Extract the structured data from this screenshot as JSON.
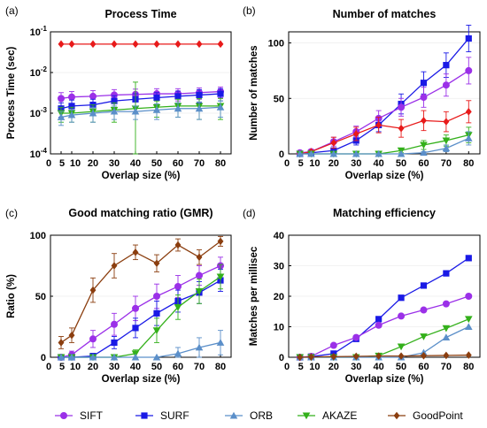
{
  "legend": [
    {
      "name": "SIFT",
      "color": "#9b30e8",
      "marker": "circle"
    },
    {
      "name": "SURF",
      "color": "#1a1ae6",
      "marker": "square"
    },
    {
      "name": "ORB",
      "color": "#5b8fc9",
      "marker": "triangle-up"
    },
    {
      "name": "AKAZE",
      "color": "#33b01a",
      "marker": "triangle-down"
    },
    {
      "name": "GoodPoint",
      "color": "#8b3e0f",
      "marker": "diamond"
    }
  ],
  "chart_data": [
    {
      "panel": "(a)",
      "type": "line",
      "title": "Process Time",
      "xlabel": "Overlap size (%)",
      "ylabel": "Process Time (sec)",
      "yscale": "log",
      "ylim": [
        0.0001,
        0.1
      ],
      "xlim": [
        0,
        85
      ],
      "xticks": [
        0,
        5,
        10,
        20,
        30,
        40,
        50,
        60,
        70,
        80
      ],
      "yticks": [
        {
          "value": 0.0001,
          "base": "10",
          "exp": "-4"
        },
        {
          "value": 0.001,
          "base": "10",
          "exp": "-3"
        },
        {
          "value": 0.01,
          "base": "10",
          "exp": "-2"
        },
        {
          "value": 0.1,
          "base": "10",
          "exp": "-1"
        }
      ],
      "x": [
        5,
        10,
        20,
        30,
        40,
        50,
        60,
        70,
        80
      ],
      "series": [
        {
          "key": "GoodPoint",
          "color": "#e81a1a",
          "marker": "diamond",
          "values": [
            0.05,
            0.05,
            0.05,
            0.05,
            0.05,
            0.05,
            0.05,
            0.05,
            0.05
          ],
          "err": [
            0,
            0,
            0,
            0,
            0,
            0,
            0,
            0,
            0
          ]
        },
        {
          "key": "SIFT",
          "color": "#9b30e8",
          "marker": "circle",
          "values": [
            0.0023,
            0.0025,
            0.0026,
            0.0028,
            0.0029,
            0.003,
            0.003,
            0.0032,
            0.0034
          ],
          "err": [
            0.0009,
            0.0009,
            0.001,
            0.001,
            0.001,
            0.001,
            0.001,
            0.001,
            0.001
          ]
        },
        {
          "key": "SURF",
          "color": "#1a1ae6",
          "marker": "square",
          "values": [
            0.0013,
            0.0015,
            0.0016,
            0.002,
            0.0022,
            0.0024,
            0.0026,
            0.0028,
            0.003
          ],
          "err": [
            0.0005,
            0.0006,
            0.0006,
            0.0007,
            0.0008,
            0.0008,
            0.0009,
            0.001,
            0.001
          ]
        },
        {
          "key": "AKAZE",
          "color": "#33b01a",
          "marker": "triangle-down",
          "values": [
            0.001,
            0.001,
            0.0011,
            0.0012,
            0.0013,
            0.0014,
            0.0015,
            0.0015,
            0.0015
          ],
          "err": [
            0.0004,
            0.0004,
            0.0005,
            0.0006,
            0.0045,
            0.0006,
            0.0007,
            0.0008,
            0.0008
          ]
        },
        {
          "key": "ORB",
          "color": "#5b8fc9",
          "marker": "triangle-up",
          "values": [
            0.0008,
            0.0009,
            0.001,
            0.0011,
            0.0011,
            0.0012,
            0.0013,
            0.0013,
            0.0014
          ],
          "err": [
            0.0003,
            0.0003,
            0.0004,
            0.0004,
            0.0004,
            0.0005,
            0.0005,
            0.0006,
            0.0006
          ]
        }
      ]
    },
    {
      "panel": "(b)",
      "type": "line",
      "title": "Number of matches",
      "xlabel": "Overlap size (%)",
      "ylabel": "Number of matches",
      "ylim": [
        0,
        110
      ],
      "xlim": [
        0,
        85
      ],
      "xticks": [
        0,
        5,
        10,
        20,
        30,
        40,
        50,
        60,
        70,
        80
      ],
      "yticks": [
        0,
        50,
        100
      ],
      "x": [
        5,
        10,
        20,
        30,
        40,
        50,
        60,
        70,
        80
      ],
      "series": [
        {
          "key": "SURF",
          "color": "#1a1ae6",
          "marker": "square",
          "values": [
            0,
            1,
            3,
            12,
            26,
            45,
            64,
            80,
            104
          ],
          "err": [
            1,
            1,
            2,
            4,
            6,
            9,
            10,
            11,
            12
          ]
        },
        {
          "key": "SIFT",
          "color": "#9b30e8",
          "marker": "circle",
          "values": [
            1,
            2,
            11,
            20,
            32,
            42,
            51,
            62,
            75
          ],
          "err": [
            1,
            2,
            4,
            5,
            7,
            8,
            9,
            10,
            12
          ]
        },
        {
          "key": "AKAZE_red",
          "color": "#e81a1a",
          "marker": "diamond",
          "values": [
            0,
            2,
            10,
            18,
            26,
            23,
            30,
            29,
            38
          ],
          "err": [
            1,
            1,
            5,
            6,
            7,
            8,
            9,
            9,
            10
          ]
        },
        {
          "key": "AKAZE",
          "color": "#33b01a",
          "marker": "triangle-down",
          "values": [
            0,
            0,
            0,
            0,
            0,
            3,
            8,
            12,
            17
          ],
          "err": [
            0,
            0,
            0,
            0,
            0,
            2,
            4,
            5,
            7
          ]
        },
        {
          "key": "ORB",
          "color": "#5b8fc9",
          "marker": "triangle-up",
          "values": [
            0,
            0,
            0,
            0,
            0,
            0,
            1,
            5,
            14
          ],
          "err": [
            0,
            0,
            0,
            0,
            0,
            0,
            1,
            3,
            6
          ]
        }
      ]
    },
    {
      "panel": "(c)",
      "type": "line",
      "title": "Good matching ratio  (GMR)",
      "xlabel": "Overlap size (%)",
      "ylabel": "Ratio (%)",
      "ylim": [
        0,
        100
      ],
      "xlim": [
        0,
        85
      ],
      "xticks": [
        0,
        5,
        10,
        20,
        30,
        40,
        50,
        60,
        70,
        80
      ],
      "yticks": [
        0,
        50,
        100
      ],
      "x": [
        5,
        10,
        20,
        30,
        40,
        50,
        60,
        70,
        80
      ],
      "series": [
        {
          "key": "GoodPoint",
          "color": "#8b3e0f",
          "marker": "diamond",
          "values": [
            12,
            18,
            55,
            75,
            86,
            77,
            92,
            82,
            95
          ],
          "err": [
            5,
            6,
            10,
            10,
            6,
            7,
            5,
            6,
            4
          ]
        },
        {
          "key": "SIFT",
          "color": "#9b30e8",
          "marker": "circle",
          "values": [
            0,
            2,
            15,
            27,
            40,
            50,
            58,
            67,
            75
          ],
          "err": [
            1,
            3,
            7,
            9,
            10,
            10,
            9,
            8,
            7
          ]
        },
        {
          "key": "SURF",
          "color": "#1a1ae6",
          "marker": "square",
          "values": [
            0,
            0,
            1,
            12,
            24,
            36,
            46,
            53,
            63
          ],
          "err": [
            0,
            0,
            1,
            5,
            8,
            10,
            9,
            9,
            9
          ]
        },
        {
          "key": "AKAZE",
          "color": "#33b01a",
          "marker": "triangle-down",
          "values": [
            0,
            0,
            0,
            0,
            3,
            22,
            41,
            54,
            66
          ],
          "err": [
            0,
            0,
            0,
            0,
            3,
            10,
            10,
            10,
            10
          ]
        },
        {
          "key": "ORB",
          "color": "#5b8fc9",
          "marker": "triangle-up",
          "values": [
            0,
            0,
            0,
            0,
            0,
            0,
            3,
            8,
            12
          ],
          "err": [
            0,
            0,
            0,
            0,
            0,
            0,
            5,
            8,
            10
          ]
        }
      ]
    },
    {
      "panel": "(d)",
      "type": "line",
      "title": "Matching efficiency",
      "xlabel": "Overlap size (%)",
      "ylabel": "Matches per millisec",
      "ylim": [
        0,
        40
      ],
      "xlim": [
        0,
        85
      ],
      "xticks": [
        0,
        5,
        10,
        20,
        30,
        40,
        50,
        60,
        70,
        80
      ],
      "yticks": [
        0,
        10,
        20,
        30,
        40
      ],
      "x": [
        5,
        10,
        20,
        30,
        40,
        50,
        60,
        70,
        80
      ],
      "series": [
        {
          "key": "SURF",
          "color": "#1a1ae6",
          "marker": "square",
          "values": [
            0,
            0.2,
            1.2,
            6,
            12.5,
            19.5,
            23.5,
            27.5,
            32.5
          ],
          "err": [
            0,
            0,
            0,
            0,
            0,
            0,
            0,
            0,
            0
          ]
        },
        {
          "key": "SIFT",
          "color": "#9b30e8",
          "marker": "circle",
          "values": [
            0,
            0.3,
            3.9,
            6.5,
            10.5,
            13.5,
            15.5,
            17.5,
            20
          ],
          "err": [
            0,
            0,
            0,
            0,
            0,
            0,
            0,
            0,
            0
          ]
        },
        {
          "key": "AKAZE",
          "color": "#33b01a",
          "marker": "triangle-down",
          "values": [
            0,
            0,
            0,
            0,
            0.5,
            3.5,
            6.8,
            9.5,
            12.5
          ],
          "err": [
            0,
            0,
            0,
            0,
            0,
            0,
            0,
            0,
            0
          ]
        },
        {
          "key": "ORB",
          "color": "#5b8fc9",
          "marker": "triangle-up",
          "values": [
            0,
            0,
            0,
            0,
            0,
            0,
            1.5,
            6.5,
            10
          ],
          "err": [
            0,
            0,
            0,
            0,
            0,
            0,
            0,
            0,
            0
          ]
        },
        {
          "key": "GoodPoint",
          "color": "#8b3e0f",
          "marker": "diamond",
          "values": [
            0,
            0.1,
            0.2,
            0.3,
            0.4,
            0.4,
            0.5,
            0.6,
            0.7
          ],
          "err": [
            0,
            0,
            0,
            0,
            0,
            0,
            0,
            0,
            0
          ]
        }
      ]
    }
  ]
}
